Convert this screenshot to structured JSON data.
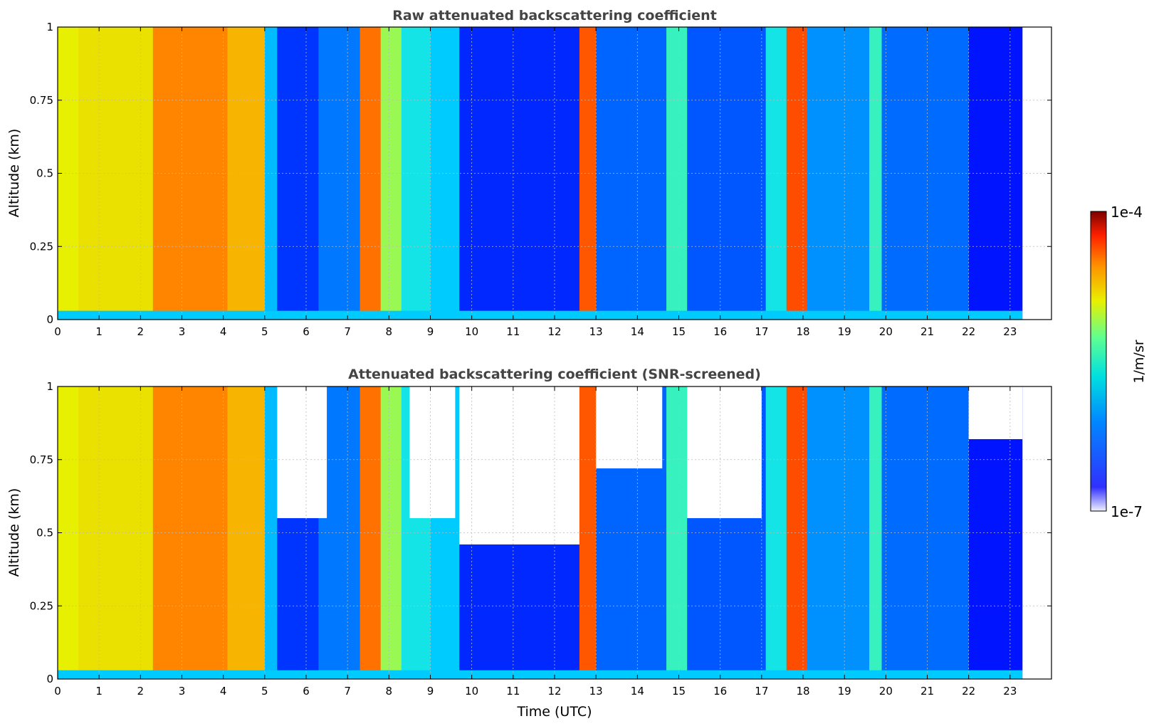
{
  "chart_data": [
    {
      "type": "heatmap",
      "title": "Raw attenuated backscattering coefficient",
      "xlabel": "",
      "ylabel": "Altitude (km)",
      "xlim": [
        0,
        24
      ],
      "ylim": [
        0,
        1
      ],
      "x_ticks": [
        "0",
        "1",
        "2",
        "3",
        "4",
        "5",
        "6",
        "7",
        "8",
        "9",
        "10",
        "11",
        "12",
        "13",
        "14",
        "15",
        "16",
        "17",
        "18",
        "19",
        "20",
        "21",
        "22",
        "23"
      ],
      "y_ticks": [
        "0",
        "0.25",
        "0.5",
        "0.75",
        "1"
      ],
      "grid": true,
      "data_end_hour": 23.3,
      "bands": [
        {
          "x": [
            0.0,
            0.5
          ],
          "level": 0.66
        },
        {
          "x": [
            0.5,
            2.3
          ],
          "level": 0.68
        },
        {
          "x": [
            2.3,
            4.1
          ],
          "level": 0.8
        },
        {
          "x": [
            4.1,
            5.0
          ],
          "level": 0.74
        },
        {
          "x": [
            5.0,
            5.3
          ],
          "level": 0.38
        },
        {
          "x": [
            5.3,
            6.3
          ],
          "level": 0.2
        },
        {
          "x": [
            6.3,
            7.3
          ],
          "level": 0.3
        },
        {
          "x": [
            7.3,
            7.8
          ],
          "level": 0.82
        },
        {
          "x": [
            7.8,
            8.3
          ],
          "level": 0.6
        },
        {
          "x": [
            8.3,
            9.0
          ],
          "level": 0.45
        },
        {
          "x": [
            9.0,
            9.7
          ],
          "level": 0.4
        },
        {
          "x": [
            9.7,
            12.6
          ],
          "level": 0.18
        },
        {
          "x": [
            12.6,
            13.0
          ],
          "level": 0.85
        },
        {
          "x": [
            13.0,
            14.7
          ],
          "level": 0.27
        },
        {
          "x": [
            14.7,
            15.2
          ],
          "level": 0.5
        },
        {
          "x": [
            15.2,
            17.1
          ],
          "level": 0.25
        },
        {
          "x": [
            17.1,
            17.6
          ],
          "level": 0.45
        },
        {
          "x": [
            17.6,
            18.1
          ],
          "level": 0.86
        },
        {
          "x": [
            18.1,
            19.6
          ],
          "level": 0.33
        },
        {
          "x": [
            19.6,
            19.9
          ],
          "level": 0.5
        },
        {
          "x": [
            19.9,
            22.0
          ],
          "level": 0.28
        },
        {
          "x": [
            22.0,
            23.3
          ],
          "level": 0.15
        }
      ]
    },
    {
      "type": "heatmap",
      "title": "Attenuated backscattering coefficient (SNR-screened)",
      "xlabel": "Time (UTC)",
      "ylabel": "Altitude (km)",
      "xlim": [
        0,
        24
      ],
      "ylim": [
        0,
        1
      ],
      "x_ticks": [
        "0",
        "1",
        "2",
        "3",
        "4",
        "5",
        "6",
        "7",
        "8",
        "9",
        "10",
        "11",
        "12",
        "13",
        "14",
        "15",
        "16",
        "17",
        "18",
        "19",
        "20",
        "21",
        "22",
        "23"
      ],
      "y_ticks": [
        "0",
        "0.25",
        "0.5",
        "0.75",
        "1"
      ],
      "grid": true,
      "data_end_hour": 23.3,
      "screened_regions": [
        {
          "x": [
            5.3,
            6.5
          ],
          "y": [
            0.55,
            1.0
          ]
        },
        {
          "x": [
            8.5,
            9.6
          ],
          "y": [
            0.55,
            1.0
          ]
        },
        {
          "x": [
            9.7,
            12.6
          ],
          "y": [
            0.46,
            1.0
          ]
        },
        {
          "x": [
            13.0,
            14.6
          ],
          "y": [
            0.72,
            1.0
          ]
        },
        {
          "x": [
            15.2,
            17.0
          ],
          "y": [
            0.55,
            1.0
          ]
        },
        {
          "x": [
            22.0,
            23.3
          ],
          "y": [
            0.82,
            1.0
          ]
        }
      ]
    }
  ],
  "colorbar": {
    "label": "1/m/sr",
    "max_label": "1e-4",
    "min_label": "1e-7",
    "scale": "log",
    "colormap": "jet"
  }
}
